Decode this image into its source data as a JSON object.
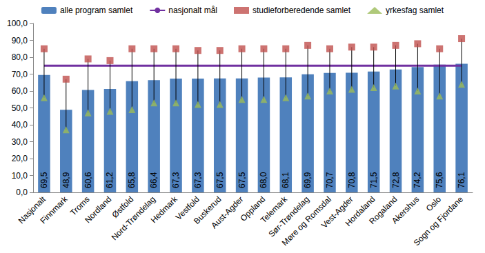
{
  "chart_data": {
    "type": "bar",
    "categories": [
      "Nasjonalt",
      "Finnmark",
      "Troms",
      "Nordland",
      "Østfold",
      "Nord-Trøndelag",
      "Hedmark",
      "Vestfold",
      "Buskerud",
      "Aust-Agder",
      "Oppland",
      "Telemark",
      "Sør-Trøndelag",
      "Møre og Romsdal",
      "Vest-Agder",
      "Hordaland",
      "Rogaland",
      "Akershus",
      "Oslo",
      "Sogn og Fjordane"
    ],
    "series": [
      {
        "name": "alle program samlet",
        "type": "bar",
        "color": "#4f81bd",
        "values": [
          69.5,
          48.9,
          60.6,
          61.2,
          65.8,
          66.4,
          67.3,
          67.3,
          67.5,
          67.5,
          68.0,
          68.1,
          69.9,
          70.7,
          70.8,
          71.5,
          72.8,
          74.2,
          75.6,
          76.1
        ],
        "value_labels": [
          "69,5",
          "48,9",
          "60,6",
          "61,2",
          "65,8",
          "66,4",
          "67,3",
          "67,3",
          "67,5",
          "67,5",
          "68,0",
          "68,1",
          "69,9",
          "70,7",
          "70,8",
          "71,5",
          "72,8",
          "74,2",
          "75,6",
          "76,1"
        ]
      },
      {
        "name": "nasjonalt mål",
        "type": "line",
        "color": "#7030a0",
        "line_style": "solid",
        "values": [
          75,
          75,
          75,
          75,
          75,
          75,
          75,
          75,
          75,
          75,
          75,
          75,
          75,
          75,
          75,
          75,
          75,
          75,
          75,
          75
        ]
      },
      {
        "name": "studieforberedende samlet",
        "type": "scatter",
        "color": "#c0504d",
        "marker": "square",
        "values": [
          85,
          67,
          79,
          78,
          85,
          85,
          85,
          84,
          84,
          85,
          85,
          85,
          87,
          85,
          86,
          86,
          87,
          88,
          85,
          91
        ]
      },
      {
        "name": "yrkesfag samlet",
        "type": "scatter",
        "color": "#9bbb59",
        "marker": "triangle",
        "values": [
          56,
          37,
          47,
          48,
          49,
          53,
          53,
          52,
          52,
          55,
          55,
          56,
          57,
          60,
          61,
          62,
          63,
          60,
          57,
          64
        ]
      }
    ],
    "ylim": [
      0,
      100
    ],
    "yticks": [
      {
        "value": 0,
        "label": "0,0"
      },
      {
        "value": 10,
        "label": "10,0"
      },
      {
        "value": 20,
        "label": "20,0"
      },
      {
        "value": 30,
        "label": "30,0"
      },
      {
        "value": 40,
        "label": "40,0"
      },
      {
        "value": 50,
        "label": "50,0"
      },
      {
        "value": 60,
        "label": "60,0"
      },
      {
        "value": 70,
        "label": "70,0"
      },
      {
        "value": 80,
        "label": "80,0"
      },
      {
        "value": 90,
        "label": "90,0"
      },
      {
        "value": 100,
        "label": "100,0"
      }
    ],
    "grid": false,
    "legend": "top",
    "data_labels": true
  }
}
